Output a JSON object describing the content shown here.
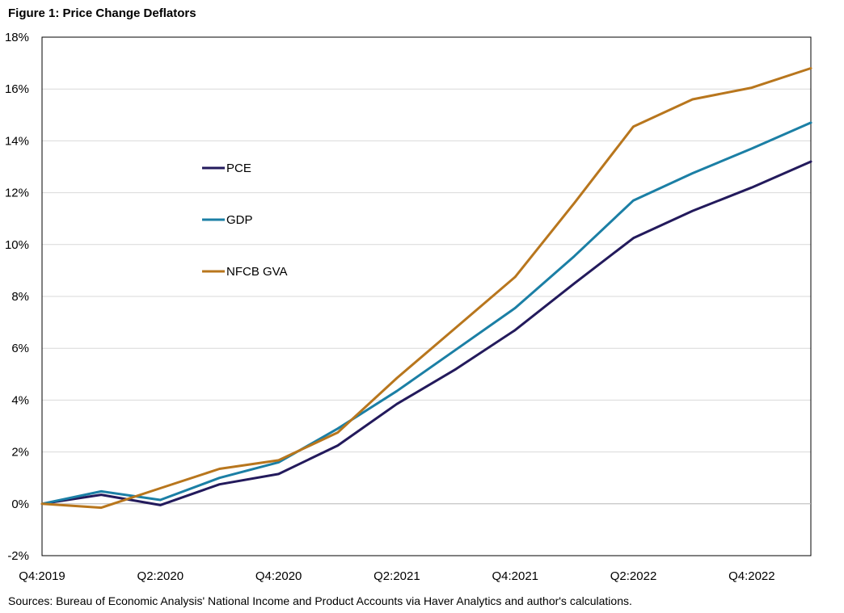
{
  "chart_data": {
    "type": "line",
    "title": "Figure 1: Price Change Deflators",
    "xlabel": "",
    "ylabel": "",
    "x": [
      "Q4:2019",
      "Q1:2020",
      "Q2:2020",
      "Q3:2020",
      "Q4:2020",
      "Q1:2021",
      "Q2:2021",
      "Q3:2021",
      "Q4:2021",
      "Q1:2022",
      "Q2:2022",
      "Q3:2022",
      "Q4:2022",
      "Q1:2023"
    ],
    "x_tick_labels": [
      "Q4:2019",
      "Q2:2020",
      "Q4:2020",
      "Q2:2021",
      "Q4:2021",
      "Q2:2022",
      "Q4:2022"
    ],
    "y_tick_labels": [
      "-2%",
      "0%",
      "2%",
      "4%",
      "6%",
      "8%",
      "10%",
      "12%",
      "14%",
      "16%",
      "18%"
    ],
    "ylim": [
      -2,
      18
    ],
    "y_unit": "%",
    "grid": "horizontal",
    "legend_placement": "left-middle inside plot",
    "series": [
      {
        "name": "PCE",
        "color": "#231a5c",
        "values": [
          0.0,
          0.35,
          -0.05,
          0.75,
          1.15,
          2.25,
          3.85,
          5.2,
          6.7,
          8.5,
          10.25,
          11.3,
          12.2,
          13.2
        ]
      },
      {
        "name": "GDP",
        "color": "#1b7fa5",
        "values": [
          0.0,
          0.48,
          0.15,
          1.0,
          1.6,
          2.9,
          4.35,
          5.95,
          7.55,
          9.55,
          11.7,
          12.75,
          13.7,
          14.7
        ]
      },
      {
        "name": "NFCB GVA",
        "color": "#b8761d",
        "values": [
          0.0,
          -0.15,
          0.6,
          1.35,
          1.68,
          2.75,
          4.85,
          6.8,
          8.75,
          11.6,
          14.55,
          15.6,
          16.05,
          16.8
        ]
      }
    ]
  },
  "source_note": "Sources: Bureau of Economic Analysis' National Income and Product Accounts via Haver Analytics and author's calculations."
}
